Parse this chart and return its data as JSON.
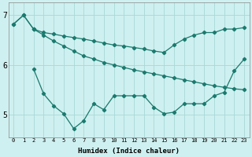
{
  "xlabel": "Humidex (Indice chaleur)",
  "bg_color": "#cff0f0",
  "line_color": "#1a7a6e",
  "grid_color": "#a8d8d8",
  "xlim": [
    -0.5,
    23.5
  ],
  "ylim": [
    4.55,
    7.25
  ],
  "yticks": [
    5,
    6,
    7
  ],
  "xtick_labels": [
    "0",
    "1",
    "2",
    "3",
    "4",
    "5",
    "6",
    "7",
    "8",
    "9",
    "10",
    "11",
    "12",
    "13",
    "14",
    "15",
    "16",
    "17",
    "18",
    "19",
    "20",
    "21",
    "22",
    "23"
  ],
  "line1_x": [
    0,
    1,
    2
  ],
  "line1_y": [
    6.82,
    7.0,
    6.72
  ],
  "line2_x": [
    0,
    1,
    2,
    3,
    4,
    5,
    6,
    7,
    8,
    9,
    10,
    11,
    12,
    13,
    14,
    15,
    16,
    17,
    18,
    19,
    20,
    21,
    22,
    23
  ],
  "line2_y": [
    6.82,
    7.0,
    6.72,
    6.65,
    6.62,
    6.58,
    6.55,
    6.52,
    6.48,
    6.44,
    6.4,
    6.38,
    6.35,
    6.32,
    6.28,
    6.25,
    6.4,
    6.52,
    6.6,
    6.65,
    6.65,
    6.72,
    6.72,
    6.75
  ],
  "line3_x": [
    2,
    3,
    4,
    5,
    6,
    7,
    8,
    9,
    10,
    11,
    12,
    13,
    14,
    15,
    16,
    17,
    18,
    19,
    20,
    21,
    22,
    23
  ],
  "line3_y": [
    6.72,
    6.6,
    6.48,
    6.38,
    6.28,
    6.18,
    6.12,
    6.05,
    6.0,
    5.95,
    5.9,
    5.86,
    5.82,
    5.78,
    5.74,
    5.7,
    5.66,
    5.62,
    5.58,
    5.55,
    5.52,
    5.5
  ],
  "line4_x": [
    2,
    3,
    4,
    5,
    6,
    7,
    8,
    9,
    10,
    11,
    12,
    13,
    14,
    15,
    16,
    17,
    18,
    19,
    20,
    21,
    22,
    23
  ],
  "line4_y": [
    5.92,
    5.42,
    5.18,
    5.02,
    4.72,
    4.88,
    5.22,
    5.1,
    5.38,
    5.38,
    5.38,
    5.38,
    5.15,
    5.02,
    5.05,
    5.22,
    5.22,
    5.22,
    5.38,
    5.45,
    5.88,
    6.12
  ]
}
